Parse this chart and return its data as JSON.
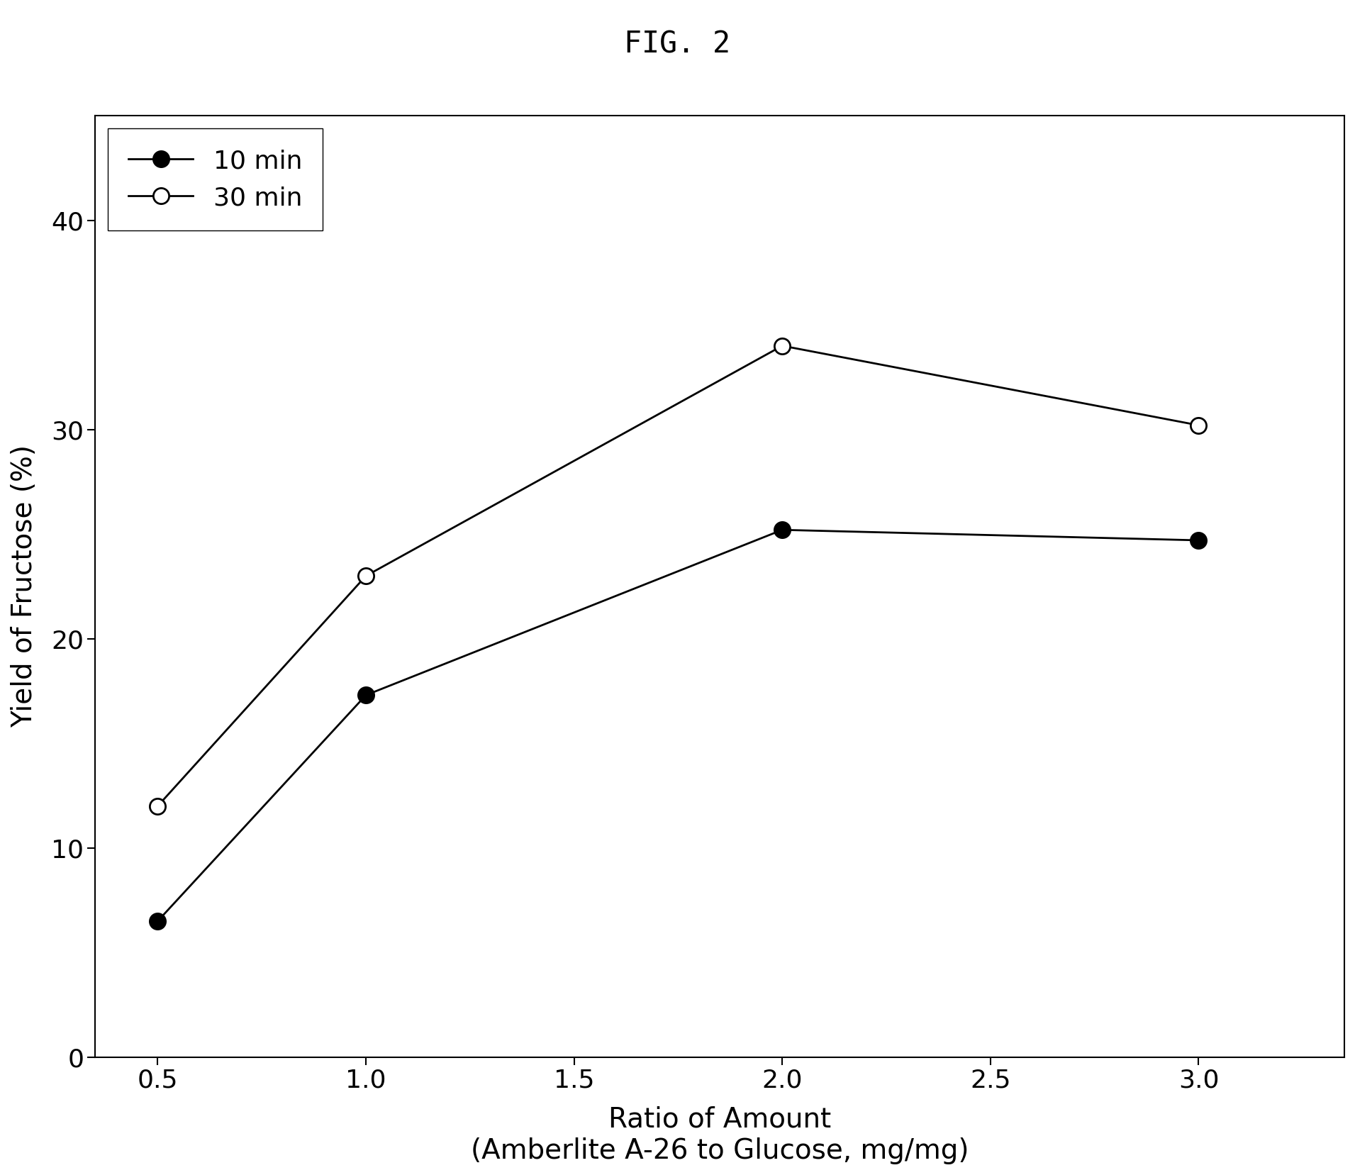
{
  "title": "FIG. 2",
  "xlabel_line1": "Ratio of Amount",
  "xlabel_line2": "(Amberlite A-26 to Glucose, mg/mg)",
  "ylabel": "Yield of Fructose (%)",
  "xlim": [
    0.35,
    3.35
  ],
  "ylim": [
    0,
    45
  ],
  "xticks": [
    0.5,
    1.0,
    1.5,
    2.0,
    2.5,
    3.0
  ],
  "yticks": [
    0,
    10,
    20,
    30,
    40
  ],
  "series": [
    {
      "label": "10 min",
      "x": [
        0.5,
        1.0,
        2.0,
        3.0
      ],
      "y": [
        6.5,
        17.3,
        25.2,
        24.7
      ],
      "marker": "o",
      "markerfacecolor": "#000000",
      "markeredgecolor": "#000000",
      "linecolor": "#000000",
      "markersize": 16
    },
    {
      "label": "30 min",
      "x": [
        0.5,
        1.0,
        2.0,
        3.0
      ],
      "y": [
        12.0,
        23.0,
        34.0,
        30.2
      ],
      "marker": "o",
      "markerfacecolor": "#ffffff",
      "markeredgecolor": "#000000",
      "linecolor": "#000000",
      "markersize": 16
    }
  ],
  "legend_fontsize": 26,
  "title_fontsize": 30,
  "axis_label_fontsize": 28,
  "tick_label_fontsize": 26,
  "background_color": "#ffffff",
  "plot_background_color": "#ffffff",
  "grid": false,
  "linewidth": 2.0,
  "markeredgewidth": 2.0,
  "fig_width": 19.11,
  "fig_height": 16.57,
  "dpi": 100
}
